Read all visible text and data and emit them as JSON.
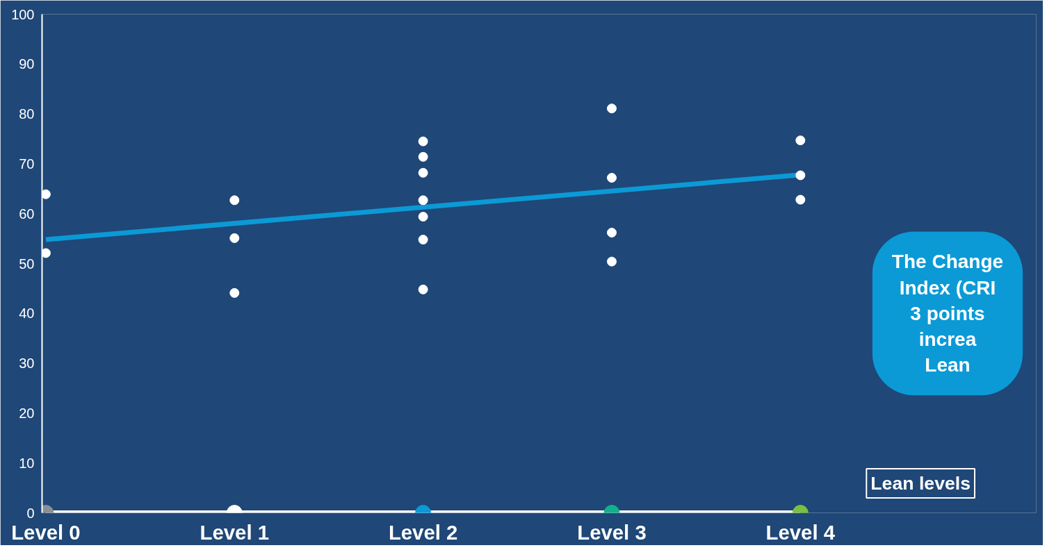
{
  "chart_data": {
    "type": "scatter",
    "categories": [
      "Level 0",
      "Level 1",
      "Level 2",
      "Level 3",
      "Level 4"
    ],
    "ylim": [
      0,
      100
    ],
    "yticks": [
      0,
      10,
      20,
      30,
      40,
      50,
      60,
      70,
      80,
      90,
      100
    ],
    "grid": false,
    "marker": "circle",
    "series": [
      {
        "type": "line",
        "color": "#ffffff",
        "colors": [
          "#8a8f94",
          "#ffffff",
          "#0b9ad6",
          "#12b08c",
          "#7ac143"
        ],
        "values": [
          0,
          0,
          0,
          0,
          0
        ],
        "marker": "circle"
      },
      {
        "type": "line",
        "color": "#0b9ad6",
        "x": [
          "Level 0",
          "Level 4"
        ],
        "values": [
          54.8,
          67.8
        ],
        "marker": "none"
      },
      {
        "color": "#ffffff",
        "x": [
          "Level 0",
          "Level 0",
          "Level 1",
          "Level 1",
          "Level 1",
          "Level 2",
          "Level 2",
          "Level 2",
          "Level 2",
          "Level 2",
          "Level 2",
          "Level 2",
          "Level 3",
          "Level 3",
          "Level 3",
          "Level 3",
          "Level 4",
          "Level 4",
          "Level 4"
        ],
        "values": [
          63.9,
          52.1,
          62.7,
          55.1,
          44.1,
          74.5,
          71.4,
          68.2,
          62.7,
          59.4,
          54.8,
          44.8,
          81.1,
          67.2,
          56.2,
          50.4,
          74.7,
          67.7,
          62.8
        ]
      }
    ],
    "annotations": [
      "The Change\nIndex (CRI\n3 points\nincrea\nLean",
      "Lean levels"
    ]
  }
}
